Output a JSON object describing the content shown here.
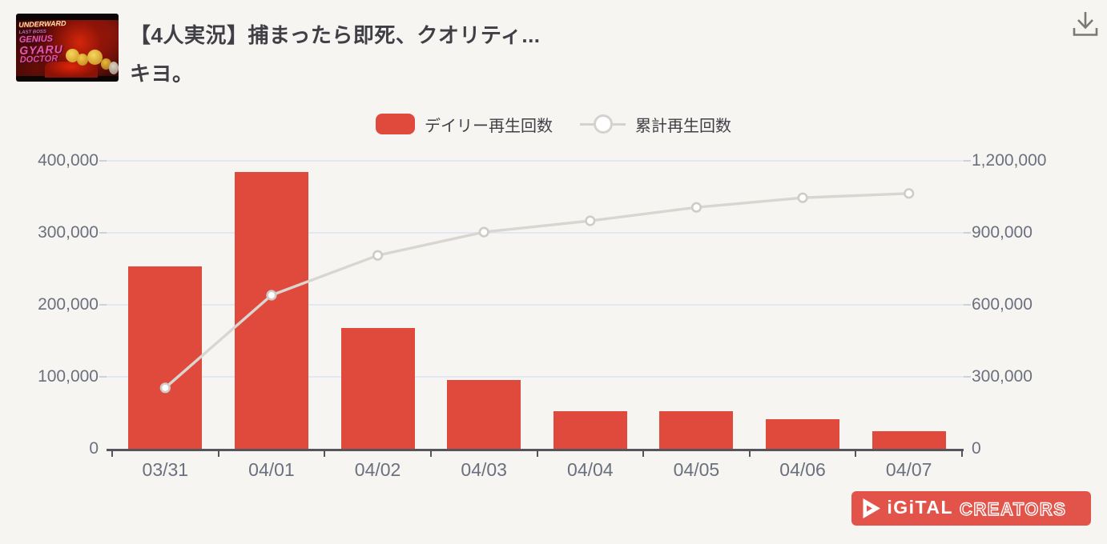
{
  "header": {
    "title_line1": "【4人実況】捕まったら即死、クオリティ...",
    "title_line2": "キヨ。",
    "download_icon": "download-icon"
  },
  "thumbnail": {
    "lines": [
      "UNDERWARD",
      "LAST BOSS",
      "GENIUS",
      "GYARU",
      "DOCTOR"
    ]
  },
  "legend": {
    "daily_label": "デイリー再生回数",
    "cumulative_label": "累計再生回数"
  },
  "chart_data": {
    "type": "bar+line",
    "categories": [
      "03/31",
      "04/01",
      "04/02",
      "04/03",
      "04/04",
      "04/05",
      "04/06",
      "04/07"
    ],
    "series": [
      {
        "name": "デイリー再生回数",
        "type": "bar",
        "axis": "left",
        "color": "#df4a3d",
        "values": [
          253000,
          384000,
          168000,
          96000,
          52000,
          52000,
          41000,
          25000
        ]
      },
      {
        "name": "累計再生回数",
        "type": "line",
        "axis": "right",
        "color": "#d9d6d2",
        "values": [
          254000,
          640000,
          806000,
          903000,
          950000,
          1006000,
          1046000,
          1064000
        ]
      }
    ],
    "y_left": {
      "label": "",
      "min": 0,
      "max": 400000,
      "ticks": [
        "0",
        "100,000",
        "200,000",
        "300,000",
        "400,000"
      ]
    },
    "y_right": {
      "label": "",
      "min": 0,
      "max": 1200000,
      "ticks": [
        "0",
        "300,000",
        "600,000",
        "900,000",
        "1,200,000"
      ]
    },
    "grid": true,
    "legend_position": "top",
    "title": ""
  },
  "logo": {
    "play_icon": "play-icon",
    "digital": "iGiTAL",
    "creators": "CREATORS",
    "accent": "#e2544a"
  },
  "colors": {
    "background": "#f7f5f2",
    "bar": "#df4a3d",
    "line": "#d9d6d2",
    "marker_stroke": "#cfccc8",
    "marker_fill": "#ffffff",
    "grid": "#e3e7f3",
    "axis": "#55555d",
    "tick_dash": "#ccd1de",
    "label": "#6a707e",
    "title_text": "#3f3f45",
    "logo_red": "#e2544a"
  }
}
